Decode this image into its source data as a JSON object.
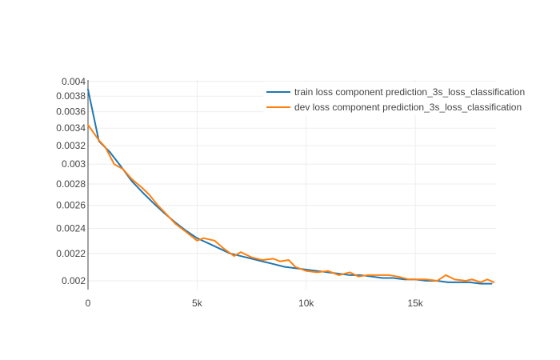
{
  "chart_data": {
    "type": "line",
    "xlabel": "",
    "ylabel": "",
    "xlim": [
      0,
      18700
    ],
    "ylim": [
      0.00194,
      0.00402
    ],
    "y_scale": "log",
    "grid": true,
    "legend_position": "top-right",
    "x_ticks": [
      {
        "value": 0,
        "label": "0"
      },
      {
        "value": 5000,
        "label": "5k"
      },
      {
        "value": 10000,
        "label": "10k"
      },
      {
        "value": 15000,
        "label": "15k"
      }
    ],
    "y_ticks": [
      {
        "value": 0.002,
        "label": "0.002"
      },
      {
        "value": 0.0022,
        "label": "0.0022"
      },
      {
        "value": 0.0024,
        "label": "0.0024"
      },
      {
        "value": 0.0026,
        "label": "0.0026"
      },
      {
        "value": 0.0028,
        "label": "0.0028"
      },
      {
        "value": 0.003,
        "label": "0.003"
      },
      {
        "value": 0.0032,
        "label": "0.0032"
      },
      {
        "value": 0.0034,
        "label": "0.0034"
      },
      {
        "value": 0.0036,
        "label": "0.0036"
      },
      {
        "value": 0.0038,
        "label": "0.0038"
      },
      {
        "value": 0.004,
        "label": "0.004"
      }
    ],
    "series": [
      {
        "name": "train loss component prediction_3s_loss_classification",
        "color": "#1f77b4",
        "x": [
          0,
          500,
          1000,
          1500,
          2000,
          2500,
          3000,
          3500,
          4000,
          4500,
          5000,
          5500,
          6000,
          6500,
          7000,
          7500,
          8000,
          8500,
          9000,
          9500,
          10000,
          10500,
          11000,
          11500,
          12000,
          12500,
          13000,
          13500,
          14000,
          14500,
          15000,
          15500,
          16000,
          16500,
          17000,
          17500,
          18000,
          18500
        ],
        "y": [
          0.00389,
          0.00325,
          0.00313,
          0.00298,
          0.00283,
          0.00272,
          0.00262,
          0.00253,
          0.00245,
          0.00238,
          0.00232,
          0.00228,
          0.00224,
          0.0022,
          0.00218,
          0.00216,
          0.00214,
          0.00212,
          0.0021,
          0.00209,
          0.00208,
          0.00207,
          0.00206,
          0.00205,
          0.00204,
          0.00204,
          0.00203,
          0.00202,
          0.00202,
          0.00201,
          0.00201,
          0.002,
          0.002,
          0.00199,
          0.00199,
          0.00199,
          0.00198,
          0.00198
        ]
      },
      {
        "name": "dev loss component prediction_3s_loss_classification",
        "color": "#ff7f0e",
        "x": [
          0,
          500,
          800,
          1200,
          1600,
          2000,
          2500,
          2800,
          3200,
          3500,
          4000,
          4500,
          5000,
          5300,
          5800,
          6200,
          6700,
          7000,
          7500,
          8000,
          8500,
          8800,
          9200,
          9500,
          10000,
          10500,
          11000,
          11500,
          12000,
          12400,
          12800,
          13200,
          13800,
          14200,
          14700,
          15000,
          15500,
          16000,
          16400,
          16800,
          17300,
          17600,
          18000,
          18300,
          18600
        ],
        "y": [
          0.00344,
          0.00326,
          0.00318,
          0.003,
          0.00295,
          0.00285,
          0.00276,
          0.0027,
          0.0026,
          0.00254,
          0.00244,
          0.00237,
          0.0023,
          0.00232,
          0.0023,
          0.00224,
          0.00218,
          0.00221,
          0.00217,
          0.00215,
          0.00216,
          0.00214,
          0.00215,
          0.0021,
          0.00207,
          0.00206,
          0.00207,
          0.00204,
          0.00206,
          0.00203,
          0.00204,
          0.00204,
          0.00204,
          0.00203,
          0.00201,
          0.00201,
          0.00201,
          0.002,
          0.00204,
          0.00201,
          0.002,
          0.00201,
          0.00199,
          0.00201,
          0.00199
        ]
      }
    ]
  }
}
